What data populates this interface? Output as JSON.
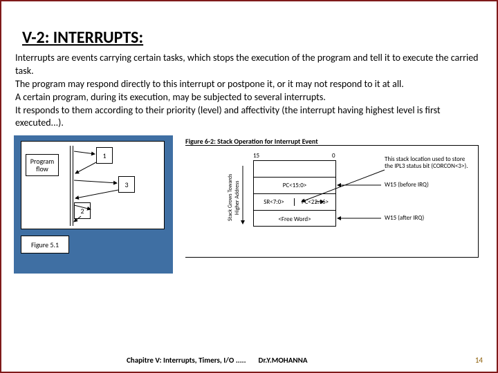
{
  "title": "V-2: INTERRUPTS:",
  "paragraphs": [
    "Interrupts are events carrying certain tasks, which stops the execution of the program and tell it to execute the carried task.",
    "The program may respond directly to this interrupt or postpone it, or it may not respond to it at all.",
    "A certain program, during its execution, may be subjected to several interrupts.",
    "It responds to them according to their priority (level) and affectivity (the interrupt having highest level is first executed...)."
  ],
  "fig_left": {
    "program_flow_label": "Program\nflow",
    "nodes": {
      "n1": "1",
      "n2": "2",
      "n3": "3"
    },
    "caption": "Figure 5.1",
    "bg_color": "#3f6fa3"
  },
  "fig_right": {
    "title": "Figure 6-2:      Stack Operation for Interrupt Event",
    "axis_left_label": "15",
    "axis_right_label": "0",
    "stack_rows": {
      "r0": "",
      "r1": "PC<15:0>",
      "r2_left": "SR<7:0>",
      "r2_right": "PC<22:16>",
      "r3": "<Free Word>"
    },
    "side_left": "Stack Grows Towards\nHigher Address",
    "note_top": "This stack location used to store the IPL3 status bit (CORCON<3>).",
    "ptr1": "W15 (before IRQ)",
    "ptr2": "W15 (after IRQ)"
  },
  "footer": {
    "chapter": "Chapitre V: Interrupts, Timers, I/O .....",
    "author": "Dr.Y.MOHANNA",
    "page": "14"
  },
  "colors": {
    "border": "#7f1a1a",
    "fig_left_bg": "#3f6fa3",
    "page_no": "#8a5a00"
  }
}
